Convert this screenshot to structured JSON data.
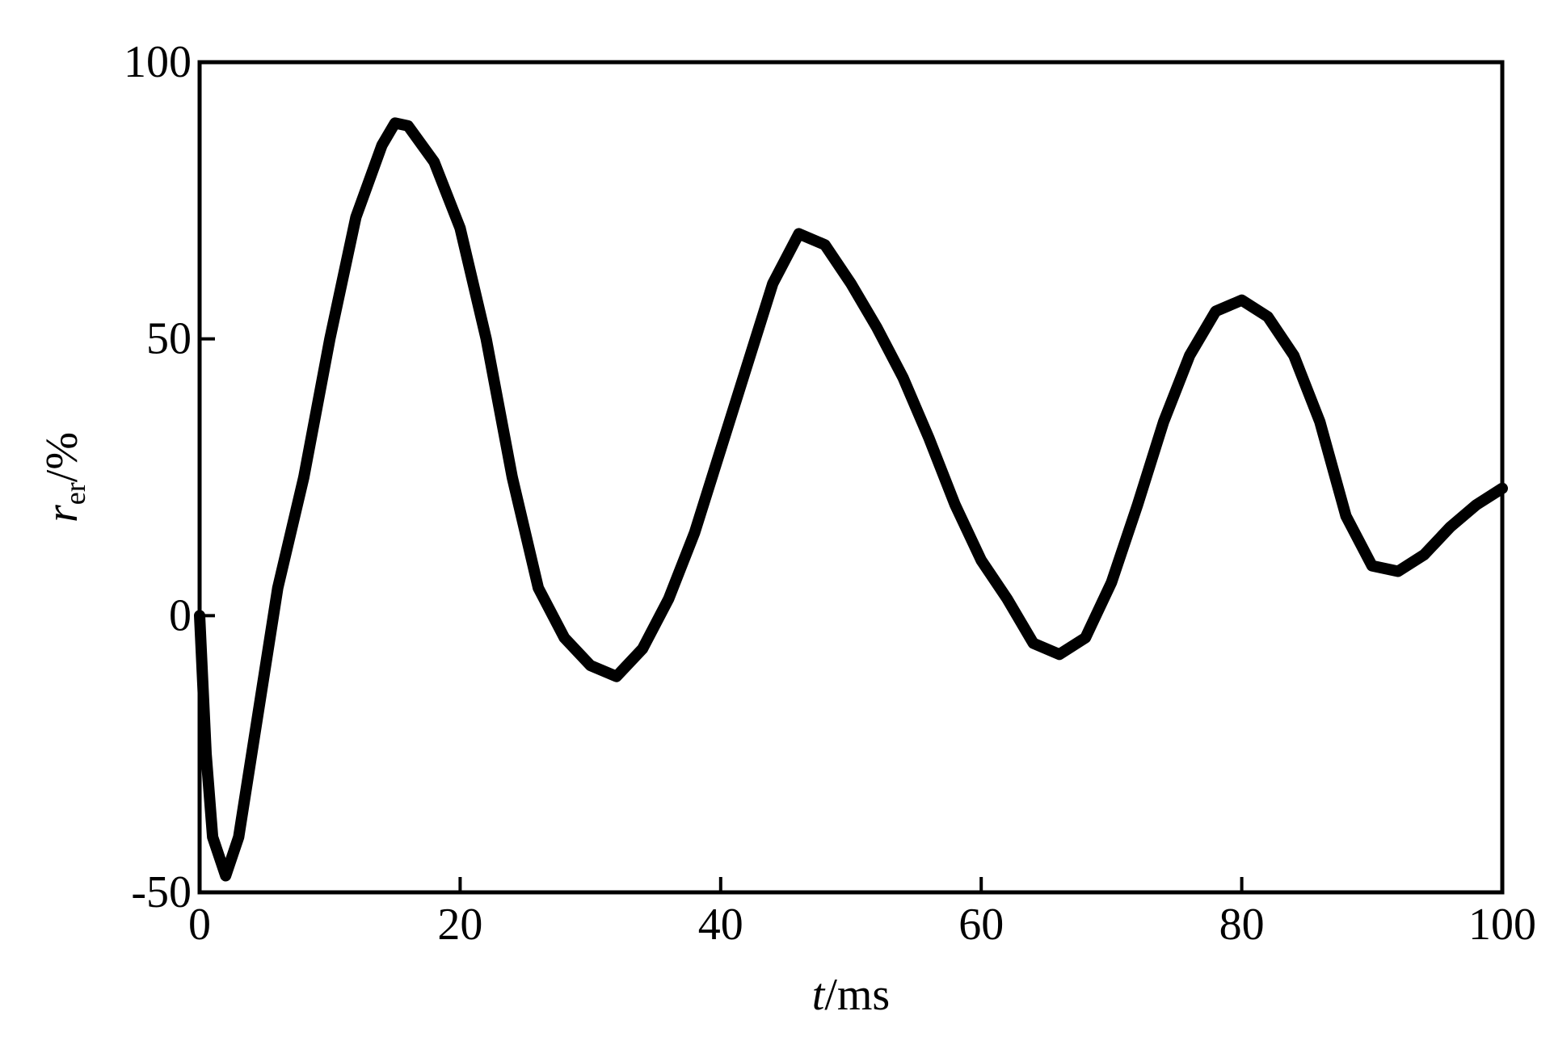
{
  "chart_data": {
    "type": "line",
    "x_label": {
      "symbol": "t",
      "unit": "/ms"
    },
    "y_label": {
      "symbol": "r",
      "subscript": "er",
      "unit": "/%"
    },
    "x": [
      0,
      0.5,
      1,
      2,
      3,
      4,
      5,
      6,
      8,
      10,
      12,
      14,
      15,
      16,
      18,
      20,
      22,
      24,
      26,
      28,
      30,
      32,
      34,
      36,
      38,
      40,
      42,
      44,
      46,
      48,
      50,
      52,
      54,
      56,
      58,
      60,
      62,
      64,
      66,
      68,
      70,
      72,
      74,
      76,
      78,
      80,
      82,
      84,
      86,
      88,
      90,
      92,
      94,
      96,
      98,
      100
    ],
    "series": [
      {
        "color": "#000000",
        "values": [
          0,
          -25,
          -40,
          -47,
          -40,
          -25,
          -10,
          5,
          25,
          50,
          72,
          85,
          89,
          88.5,
          82,
          70,
          50,
          25,
          5,
          -4,
          -9,
          -11,
          -6,
          3,
          15,
          30,
          45,
          60,
          69,
          67,
          60,
          52,
          43,
          32,
          20,
          10,
          3,
          -5,
          -7,
          -4,
          6,
          20,
          35,
          47,
          55,
          57,
          54,
          47,
          35,
          18,
          9,
          8,
          11,
          16,
          20,
          23
        ]
      }
    ],
    "xlim": [
      0,
      100
    ],
    "xticks": [
      0,
      20,
      40,
      60,
      80,
      100
    ],
    "ylim": [
      -50,
      100
    ],
    "yticks": [
      -50,
      0,
      50,
      100
    ]
  }
}
